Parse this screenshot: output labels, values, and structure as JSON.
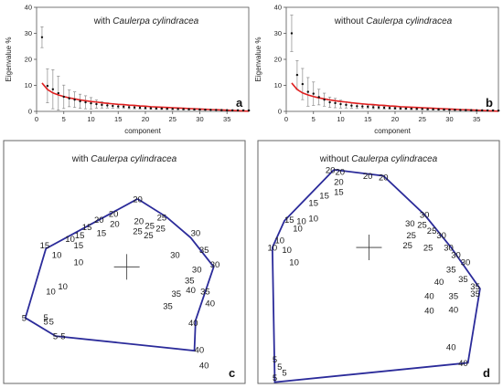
{
  "chart_data": [
    {
      "panel": "a",
      "type": "scatter",
      "title": "with Caulerpa cylindracea",
      "title_prefix": "with ",
      "title_species": "Caulerpa cylindracea",
      "xlabel": "component",
      "ylabel": "Eigenvalue %",
      "xlim": [
        0,
        39
      ],
      "ylim": [
        0,
        40
      ],
      "xticks": [
        "0",
        "5",
        "10",
        "15",
        "20",
        "25",
        "30",
        "35"
      ],
      "xtick_values": [
        0,
        5,
        10,
        15,
        20,
        25,
        30,
        35
      ],
      "yticks": [
        "0",
        "10",
        "20",
        "30",
        "40"
      ],
      "ytick_values": [
        0,
        10,
        20,
        30,
        40
      ],
      "x": [
        1,
        2,
        3,
        4,
        5,
        6,
        7,
        8,
        9,
        10,
        11,
        12,
        13,
        14,
        15,
        16,
        17,
        18,
        19,
        20,
        21,
        22,
        23,
        24,
        25,
        26,
        27,
        28,
        29,
        30,
        31,
        32,
        33,
        34,
        35,
        36,
        37,
        38,
        39
      ],
      "values": [
        28.5,
        9.8,
        8.5,
        7,
        5.6,
        5,
        4.5,
        3.9,
        3.5,
        3.1,
        2.8,
        2.5,
        2.3,
        2.1,
        1.9,
        1.8,
        1.6,
        1.5,
        1.4,
        1.3,
        1.2,
        1.1,
        1.05,
        1,
        0.95,
        0.9,
        0.85,
        0.8,
        0.75,
        0.7,
        0.65,
        0.6,
        0.55,
        0.5,
        0.45,
        0.42,
        0.4,
        0.38,
        0.35
      ],
      "error": [
        4,
        6.5,
        7.5,
        6.5,
        4.5,
        3.2,
        3,
        2.7,
        2.5,
        2.2,
        1.6,
        1.2,
        1,
        0.9,
        0.8,
        0.7,
        0.6,
        0.55,
        0.5,
        0.45,
        0.4,
        0.35,
        0.3,
        0.3,
        0.3,
        0.25,
        0.25,
        0.2,
        0.2,
        0.2,
        0.2,
        0.15,
        0.15,
        0.15,
        0.15,
        0.1,
        0.1,
        0.1,
        0.1
      ],
      "broken_stick": [
        10.9,
        8.4,
        7.1,
        6.3,
        5.7,
        5.2,
        4.8,
        4.4,
        4.1,
        3.8,
        3.6,
        3.3,
        3.1,
        2.9,
        2.7,
        2.6,
        2.4,
        2.3,
        2.1,
        2,
        1.8,
        1.7,
        1.6,
        1.5,
        1.4,
        1.3,
        1.2,
        1.1,
        1,
        0.9,
        0.8,
        0.7,
        0.65,
        0.55,
        0.45,
        0.35,
        0.25,
        0.15,
        0.07
      ],
      "line_color": "#e02020"
    },
    {
      "panel": "b",
      "type": "scatter",
      "title": "without Caulerpa cylindracea",
      "title_prefix": "without ",
      "title_species": "Caulerpa cylindracea",
      "xlabel": "component",
      "ylabel": "Eigenvalue %",
      "xlim": [
        0,
        39
      ],
      "ylim": [
        0,
        40
      ],
      "xticks": [
        "0",
        "5",
        "10",
        "15",
        "20",
        "25",
        "30",
        "35"
      ],
      "xtick_values": [
        0,
        5,
        10,
        15,
        20,
        25,
        30,
        35
      ],
      "yticks": [
        "0",
        "10",
        "20",
        "30",
        "40"
      ],
      "ytick_values": [
        0,
        10,
        20,
        30,
        40
      ],
      "x": [
        1,
        2,
        3,
        4,
        5,
        6,
        7,
        8,
        9,
        10,
        11,
        12,
        13,
        14,
        15,
        16,
        17,
        18,
        19,
        20,
        21,
        22,
        23,
        24,
        25,
        26,
        27,
        28,
        29,
        30,
        31,
        32,
        33,
        34,
        35,
        36,
        37,
        38,
        39
      ],
      "values": [
        30,
        14,
        10.5,
        7.5,
        6.8,
        5.5,
        4.5,
        3.5,
        3.2,
        2.8,
        2.5,
        2.2,
        2,
        1.9,
        1.8,
        1.6,
        1.5,
        1.4,
        1.3,
        1.2,
        1.1,
        1.05,
        1,
        0.95,
        0.9,
        0.85,
        0.8,
        0.75,
        0.7,
        0.65,
        0.6,
        0.55,
        0.5,
        0.45,
        0.42,
        0.4,
        0.38,
        0.35,
        0.3
      ],
      "error": [
        7,
        5.5,
        6,
        5.5,
        4.5,
        3,
        2.5,
        2,
        1.8,
        1.5,
        1.2,
        1,
        0.9,
        0.8,
        0.7,
        0.6,
        0.55,
        0.5,
        0.45,
        0.4,
        0.35,
        0.3,
        0.3,
        0.3,
        0.25,
        0.25,
        0.2,
        0.2,
        0.2,
        0.2,
        0.15,
        0.15,
        0.15,
        0.15,
        0.1,
        0.1,
        0.1,
        0.1,
        0.1
      ],
      "broken_stick": [
        10.9,
        8.4,
        7.1,
        6.3,
        5.7,
        5.2,
        4.8,
        4.4,
        4.1,
        3.8,
        3.6,
        3.3,
        3.1,
        2.9,
        2.7,
        2.6,
        2.4,
        2.3,
        2.1,
        2,
        1.8,
        1.7,
        1.6,
        1.5,
        1.4,
        1.3,
        1.2,
        1.1,
        1,
        0.9,
        0.8,
        0.7,
        0.65,
        0.55,
        0.45,
        0.35,
        0.25,
        0.15,
        0.07
      ],
      "line_color": "#e02020"
    },
    {
      "panel": "c",
      "type": "scatter",
      "title": "with Caulerpa cylindracea",
      "title_prefix": "with ",
      "title_species": "Caulerpa cylindracea",
      "hull_color": "#2b2b9a",
      "hull": [
        [
          0.555,
          0.24
        ],
        [
          0.675,
          0.315
        ],
        [
          0.775,
          0.4
        ],
        [
          0.87,
          0.52
        ],
        [
          0.795,
          0.74
        ],
        [
          0.79,
          0.865
        ],
        [
          0.215,
          0.805
        ],
        [
          0.09,
          0.73
        ],
        [
          0.175,
          0.445
        ],
        [
          0.555,
          0.24
        ]
      ],
      "centroid": [
        0.51,
        0.52
      ],
      "points": [
        {
          "label": "20",
          "x": 0.555,
          "y": 0.24
        },
        {
          "label": "20",
          "x": 0.455,
          "y": 0.3
        },
        {
          "label": "20",
          "x": 0.395,
          "y": 0.325
        },
        {
          "label": "20",
          "x": 0.46,
          "y": 0.343
        },
        {
          "label": "15",
          "x": 0.345,
          "y": 0.355
        },
        {
          "label": "15",
          "x": 0.405,
          "y": 0.38
        },
        {
          "label": "15",
          "x": 0.315,
          "y": 0.39
        },
        {
          "label": "10",
          "x": 0.275,
          "y": 0.405
        },
        {
          "label": "15",
          "x": 0.17,
          "y": 0.43
        },
        {
          "label": "15",
          "x": 0.31,
          "y": 0.43
        },
        {
          "label": "10",
          "x": 0.22,
          "y": 0.47
        },
        {
          "label": "10",
          "x": 0.31,
          "y": 0.5
        },
        {
          "label": "10",
          "x": 0.245,
          "y": 0.6
        },
        {
          "label": "10",
          "x": 0.195,
          "y": 0.62
        },
        {
          "label": "25",
          "x": 0.655,
          "y": 0.315
        },
        {
          "label": "30",
          "x": 0.795,
          "y": 0.38
        },
        {
          "label": "20",
          "x": 0.56,
          "y": 0.33
        },
        {
          "label": "25",
          "x": 0.605,
          "y": 0.35
        },
        {
          "label": "25",
          "x": 0.65,
          "y": 0.36
        },
        {
          "label": "25",
          "x": 0.555,
          "y": 0.372
        },
        {
          "label": "25",
          "x": 0.6,
          "y": 0.39
        },
        {
          "label": "35",
          "x": 0.83,
          "y": 0.45
        },
        {
          "label": "30",
          "x": 0.71,
          "y": 0.47
        },
        {
          "label": "30",
          "x": 0.875,
          "y": 0.51
        },
        {
          "label": "30",
          "x": 0.8,
          "y": 0.53
        },
        {
          "label": "35",
          "x": 0.77,
          "y": 0.575
        },
        {
          "label": "40",
          "x": 0.775,
          "y": 0.615
        },
        {
          "label": "35",
          "x": 0.715,
          "y": 0.63
        },
        {
          "label": "35",
          "x": 0.835,
          "y": 0.62
        },
        {
          "label": "40",
          "x": 0.855,
          "y": 0.67
        },
        {
          "label": "35",
          "x": 0.68,
          "y": 0.68
        },
        {
          "label": "40",
          "x": 0.785,
          "y": 0.75
        },
        {
          "label": "40",
          "x": 0.81,
          "y": 0.86
        },
        {
          "label": "40",
          "x": 0.83,
          "y": 0.925
        },
        {
          "label": "5",
          "x": 0.175,
          "y": 0.728
        },
        {
          "label": "5",
          "x": 0.198,
          "y": 0.745
        },
        {
          "label": "5",
          "x": 0.175,
          "y": 0.745
        },
        {
          "label": "5",
          "x": 0.085,
          "y": 0.73
        },
        {
          "label": "5-5",
          "x": 0.23,
          "y": 0.805
        }
      ]
    },
    {
      "panel": "d",
      "type": "scatter",
      "title": "without Caulerpa cylindracea",
      "title_prefix": "without ",
      "title_species": "Caulerpa cylindracea",
      "hull_color": "#2b2b9a",
      "hull": [
        [
          0.315,
          0.12
        ],
        [
          0.52,
          0.145
        ],
        [
          0.69,
          0.305
        ],
        [
          0.8,
          0.44
        ],
        [
          0.92,
          0.61
        ],
        [
          0.87,
          0.915
        ],
        [
          0.07,
          0.995
        ],
        [
          0.06,
          0.44
        ],
        [
          0.11,
          0.33
        ],
        [
          0.315,
          0.12
        ]
      ],
      "centroid": [
        0.46,
        0.44
      ],
      "points": [
        {
          "label": "20",
          "x": 0.3,
          "y": 0.12
        },
        {
          "label": "20",
          "x": 0.34,
          "y": 0.128
        },
        {
          "label": "20",
          "x": 0.335,
          "y": 0.17
        },
        {
          "label": "15",
          "x": 0.335,
          "y": 0.21
        },
        {
          "label": "20",
          "x": 0.455,
          "y": 0.145
        },
        {
          "label": "20",
          "x": 0.52,
          "y": 0.15
        },
        {
          "label": "15",
          "x": 0.275,
          "y": 0.225
        },
        {
          "label": "15",
          "x": 0.23,
          "y": 0.255
        },
        {
          "label": "15",
          "x": 0.13,
          "y": 0.325
        },
        {
          "label": "10",
          "x": 0.18,
          "y": 0.33
        },
        {
          "label": "10",
          "x": 0.23,
          "y": 0.32
        },
        {
          "label": "10",
          "x": 0.165,
          "y": 0.36
        },
        {
          "label": "10",
          "x": 0.09,
          "y": 0.41
        },
        {
          "label": "10",
          "x": 0.12,
          "y": 0.45
        },
        {
          "label": "10",
          "x": 0.06,
          "y": 0.44
        },
        {
          "label": "10",
          "x": 0.15,
          "y": 0.5
        },
        {
          "label": "30",
          "x": 0.69,
          "y": 0.305
        },
        {
          "label": "30",
          "x": 0.63,
          "y": 0.34
        },
        {
          "label": "25",
          "x": 0.68,
          "y": 0.345
        },
        {
          "label": "25",
          "x": 0.72,
          "y": 0.37
        },
        {
          "label": "25",
          "x": 0.635,
          "y": 0.39
        },
        {
          "label": "30",
          "x": 0.76,
          "y": 0.39
        },
        {
          "label": "25",
          "x": 0.62,
          "y": 0.43
        },
        {
          "label": "25",
          "x": 0.705,
          "y": 0.44
        },
        {
          "label": "30",
          "x": 0.79,
          "y": 0.44
        },
        {
          "label": "30",
          "x": 0.82,
          "y": 0.47
        },
        {
          "label": "30",
          "x": 0.86,
          "y": 0.5
        },
        {
          "label": "35",
          "x": 0.8,
          "y": 0.53
        },
        {
          "label": "35",
          "x": 0.85,
          "y": 0.57
        },
        {
          "label": "35",
          "x": 0.9,
          "y": 0.6
        },
        {
          "label": "40",
          "x": 0.75,
          "y": 0.58
        },
        {
          "label": "35",
          "x": 0.81,
          "y": 0.64
        },
        {
          "label": "35",
          "x": 0.9,
          "y": 0.63
        },
        {
          "label": "40",
          "x": 0.71,
          "y": 0.64
        },
        {
          "label": "40",
          "x": 0.71,
          "y": 0.7
        },
        {
          "label": "40",
          "x": 0.81,
          "y": 0.695
        },
        {
          "label": "40",
          "x": 0.8,
          "y": 0.85
        },
        {
          "label": "40",
          "x": 0.85,
          "y": 0.915
        },
        {
          "label": "5",
          "x": 0.07,
          "y": 0.9
        },
        {
          "label": "5",
          "x": 0.09,
          "y": 0.93
        },
        {
          "label": "5",
          "x": 0.11,
          "y": 0.955
        },
        {
          "label": "5",
          "x": 0.07,
          "y": 0.975
        }
      ]
    }
  ],
  "panel_letters": [
    "a",
    "b",
    "c",
    "d"
  ]
}
